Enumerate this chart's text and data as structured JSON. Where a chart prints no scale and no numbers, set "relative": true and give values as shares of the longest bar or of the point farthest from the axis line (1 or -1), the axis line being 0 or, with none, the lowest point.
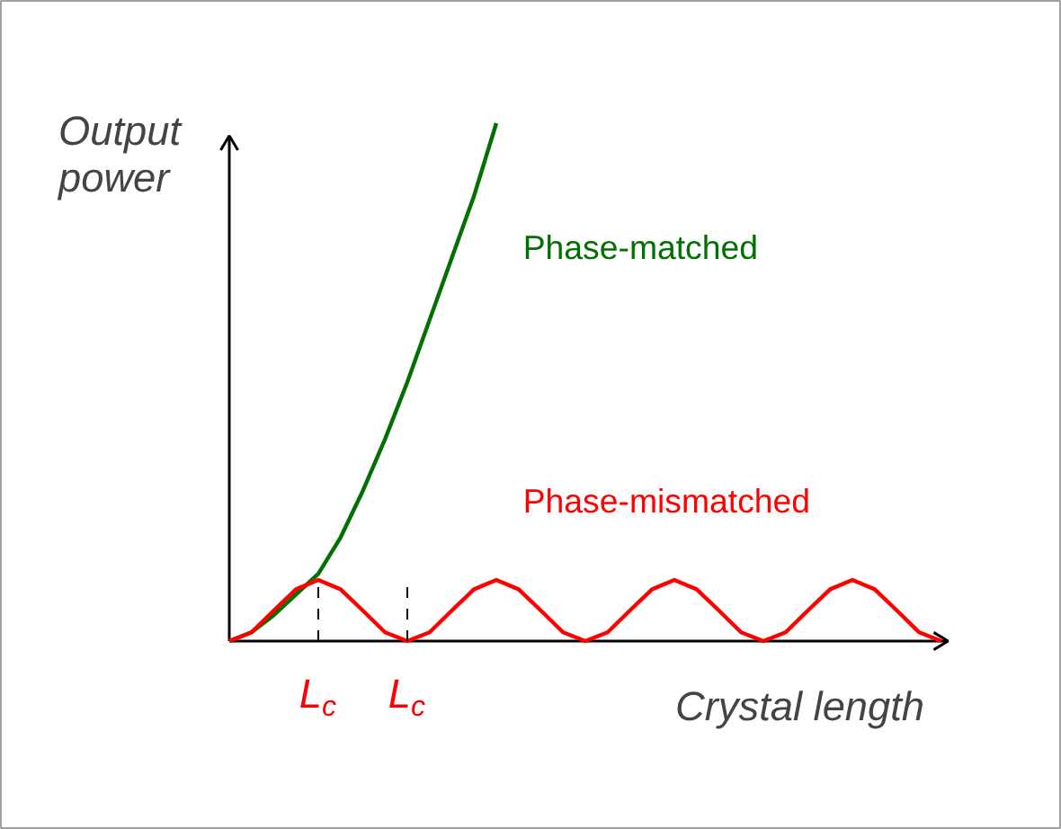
{
  "chart_data": {
    "type": "line",
    "relative": true,
    "xlabel": "Crystal length",
    "ylabel": "Output power",
    "categories": [
      null,
      null,
      null,
      null,
      null,
      null,
      null,
      null,
      null,
      null,
      null,
      null,
      null,
      null,
      null,
      null,
      null,
      null,
      null,
      null,
      null,
      null,
      null,
      null,
      null,
      null,
      null,
      null,
      null,
      null,
      null,
      null,
      null
    ],
    "series": [
      {
        "name": "Phase-matched",
        "color": "#007000",
        "values": [
          0,
          0.017,
          0.05,
          0.09,
          0.13,
          0.2,
          0.29,
          0.39,
          0.5,
          0.62,
          0.74,
          0.86,
          1,
          null,
          null,
          null,
          null,
          null,
          null,
          null,
          null,
          null,
          null,
          null,
          null,
          null,
          null,
          null,
          null,
          null,
          null,
          null,
          null
        ]
      },
      {
        "name": "Phase-mismatched",
        "color": "#ff0000",
        "values": [
          0,
          0.017,
          0.059,
          0.1,
          0.118,
          0.1,
          0.059,
          0.017,
          0,
          0.017,
          0.059,
          0.1,
          0.118,
          0.1,
          0.059,
          0.017,
          0,
          0.017,
          0.059,
          0.1,
          0.118,
          0.1,
          0.059,
          0.017,
          0,
          0.017,
          0.059,
          0.1,
          0.118,
          0.1,
          0.059,
          0.017,
          0
        ]
      }
    ],
    "annotations": [
      "L$_{c}$",
      "L$_{c}$"
    ],
    "line_style": "solid"
  }
}
